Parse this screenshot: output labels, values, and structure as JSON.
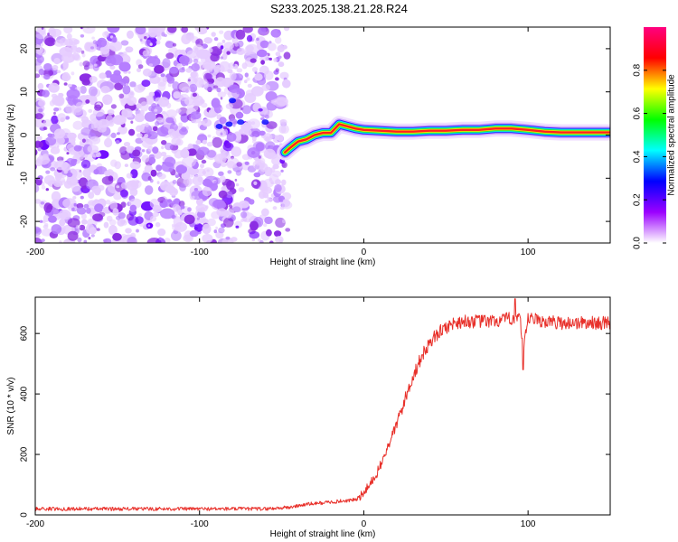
{
  "title": "S233.2025.138.21.28.R24",
  "chart_data": [
    {
      "type": "heatmap",
      "xlabel": "Height of straight line (km)",
      "ylabel": "Frequency (Hz)",
      "xlim": [
        -200,
        150
      ],
      "ylim": [
        -25,
        25
      ],
      "xticks": [
        -200,
        -100,
        0,
        100
      ],
      "yticks": [
        -20,
        -10,
        0,
        10,
        20
      ],
      "colorbar": {
        "label": "Normalized spectral amplitude",
        "range": [
          0,
          1
        ],
        "ticks": [
          "0.0",
          "0.2",
          "0.4",
          "0.6",
          "0.8"
        ],
        "tick_values": [
          0.0,
          0.2,
          0.4,
          0.6,
          0.8
        ],
        "colors": [
          "#ffffff",
          "#9b00ff",
          "#0000ff",
          "#00ffff",
          "#00ff00",
          "#ffff00",
          "#ff0000",
          "#ff0080"
        ]
      },
      "noise_region": {
        "x_range": [
          -200,
          -47
        ],
        "y_range": [
          -25,
          25
        ],
        "color": "#8a2be2"
      },
      "ridge_points": [
        {
          "x": -48,
          "y": -4,
          "amp": 0.2
        },
        {
          "x": -45,
          "y": -3,
          "amp": 0.3
        },
        {
          "x": -40,
          "y": -1.5,
          "amp": 0.5
        },
        {
          "x": -35,
          "y": -1,
          "amp": 0.7
        },
        {
          "x": -30,
          "y": 0,
          "amp": 0.8
        },
        {
          "x": -25,
          "y": 0.5,
          "amp": 0.9
        },
        {
          "x": -20,
          "y": 0.5,
          "amp": 0.95
        },
        {
          "x": -15,
          "y": 2.5,
          "amp": 0.9
        },
        {
          "x": -10,
          "y": 2,
          "amp": 0.9
        },
        {
          "x": -5,
          "y": 1.5,
          "amp": 0.95
        },
        {
          "x": 0,
          "y": 1.2,
          "amp": 1.0
        },
        {
          "x": 10,
          "y": 1,
          "amp": 1.0
        },
        {
          "x": 20,
          "y": 0.8,
          "amp": 1.0
        },
        {
          "x": 30,
          "y": 0.8,
          "amp": 1.0
        },
        {
          "x": 40,
          "y": 1,
          "amp": 1.0
        },
        {
          "x": 50,
          "y": 1,
          "amp": 1.0
        },
        {
          "x": 60,
          "y": 1.2,
          "amp": 1.0
        },
        {
          "x": 70,
          "y": 1.2,
          "amp": 1.0
        },
        {
          "x": 80,
          "y": 1.5,
          "amp": 1.0
        },
        {
          "x": 90,
          "y": 1.5,
          "amp": 1.0
        },
        {
          "x": 100,
          "y": 1.2,
          "amp": 1.0
        },
        {
          "x": 110,
          "y": 0.8,
          "amp": 1.0
        },
        {
          "x": 120,
          "y": 0.6,
          "amp": 1.0
        },
        {
          "x": 130,
          "y": 0.6,
          "amp": 1.0
        },
        {
          "x": 140,
          "y": 0.6,
          "amp": 1.0
        },
        {
          "x": 150,
          "y": 0.6,
          "amp": 1.0
        }
      ]
    },
    {
      "type": "line",
      "xlabel": "Height of straight line (km)",
      "ylabel": "SNR (10 * v/v)",
      "xlim": [
        -200,
        150
      ],
      "ylim": [
        0,
        720
      ],
      "xticks": [
        -200,
        -100,
        0,
        100
      ],
      "yticks": [
        0,
        200,
        400,
        600
      ],
      "series": [
        {
          "color": "#e8302a",
          "x": [
            -200,
            -150,
            -100,
            -60,
            -45,
            -35,
            -25,
            -15,
            -5,
            0,
            5,
            10,
            15,
            20,
            25,
            30,
            35,
            40,
            45,
            50,
            55,
            60,
            70,
            80,
            90,
            95,
            97,
            100,
            110,
            120,
            130,
            140,
            150
          ],
          "y": [
            20,
            20,
            20,
            20,
            25,
            35,
            40,
            45,
            50,
            70,
            110,
            160,
            230,
            300,
            380,
            460,
            520,
            570,
            600,
            620,
            635,
            640,
            640,
            640,
            650,
            655,
            530,
            650,
            640,
            635,
            635,
            635,
            635
          ]
        }
      ]
    }
  ]
}
